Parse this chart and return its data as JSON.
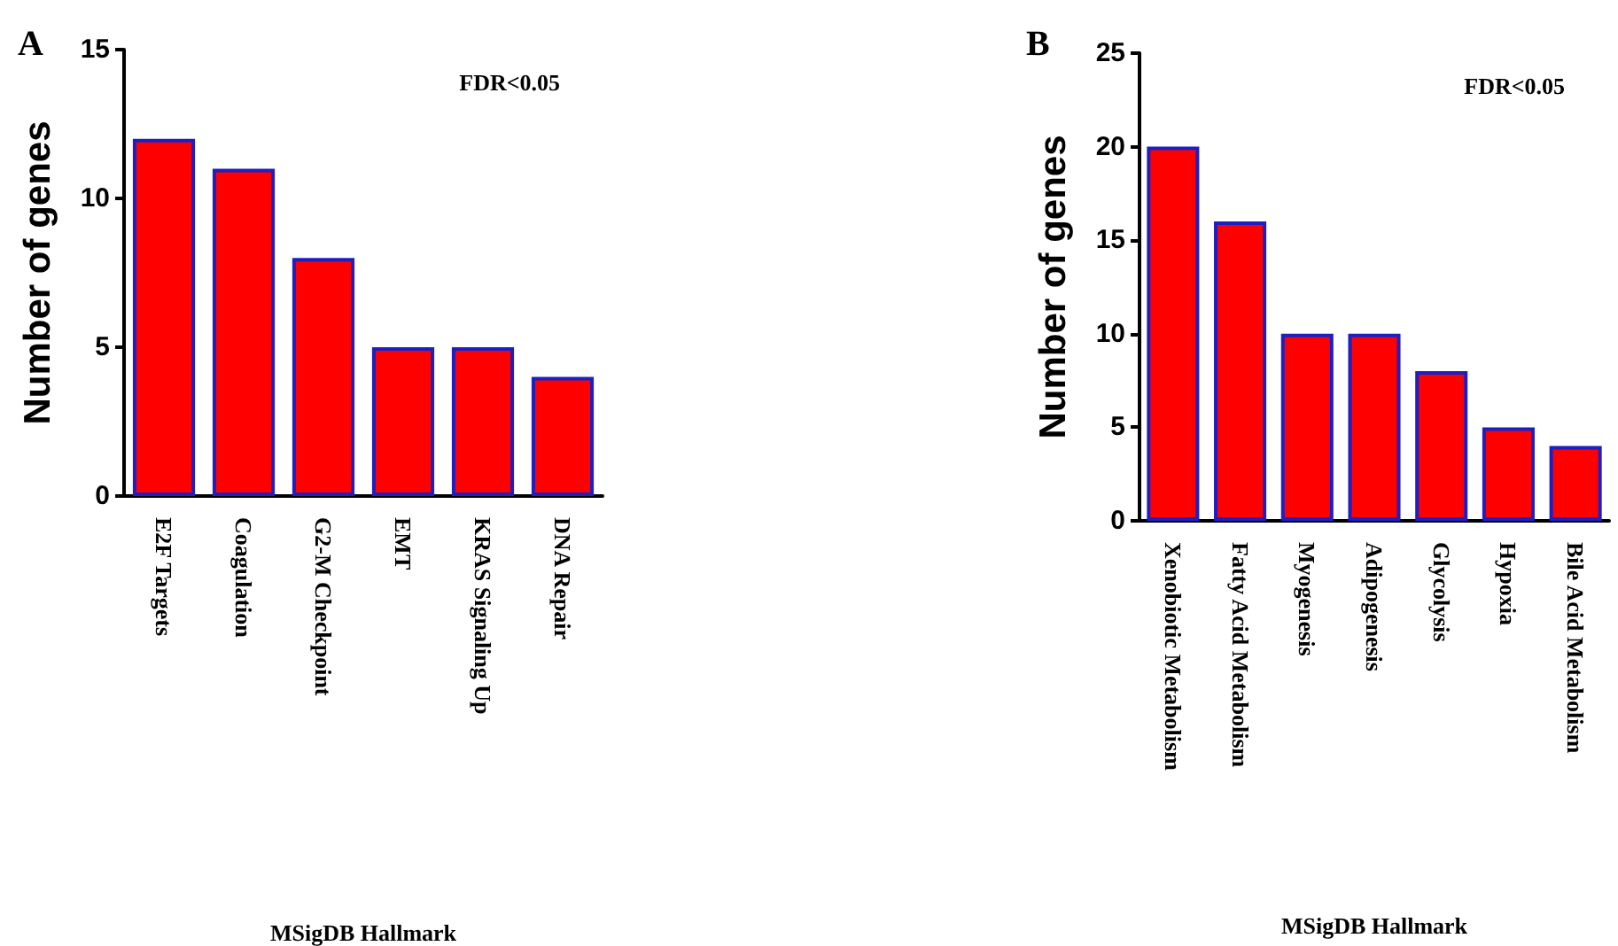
{
  "chart_data": [
    {
      "type": "bar",
      "title": "A",
      "ylabel": "Number of genes",
      "xlabel": "MSigDB Hallmark",
      "annotations": [
        "FDR<0.05"
      ],
      "categories": [
        "E2F Targets",
        "Coagulation",
        "G2-M Checkpoint",
        "EMT",
        "KRAS Signaling Up",
        "DNA Repair"
      ],
      "values": [
        12,
        11,
        8,
        5,
        5,
        4
      ],
      "color": "#ff0000",
      "ylim": [
        0,
        15
      ],
      "yticks": [
        0,
        5,
        10,
        15
      ],
      "grid": false
    },
    {
      "type": "bar",
      "title": "B",
      "ylabel": "Number of genes",
      "xlabel": "MSigDB Hallmark",
      "annotations": [
        "FDR<0.05"
      ],
      "categories": [
        "Xenobiotic Metabolism",
        "Fatty Acid Metabolism",
        "Myogenesis",
        "Adipogenesis",
        "Glycolysis",
        "Hypoxia",
        "Bile Acid Metabolism"
      ],
      "values": [
        20,
        16,
        10,
        10,
        8,
        5,
        4
      ],
      "color": "#ff0000",
      "ylim": [
        0,
        25
      ],
      "yticks": [
        0,
        5,
        10,
        15,
        20,
        25
      ],
      "grid": false
    }
  ]
}
